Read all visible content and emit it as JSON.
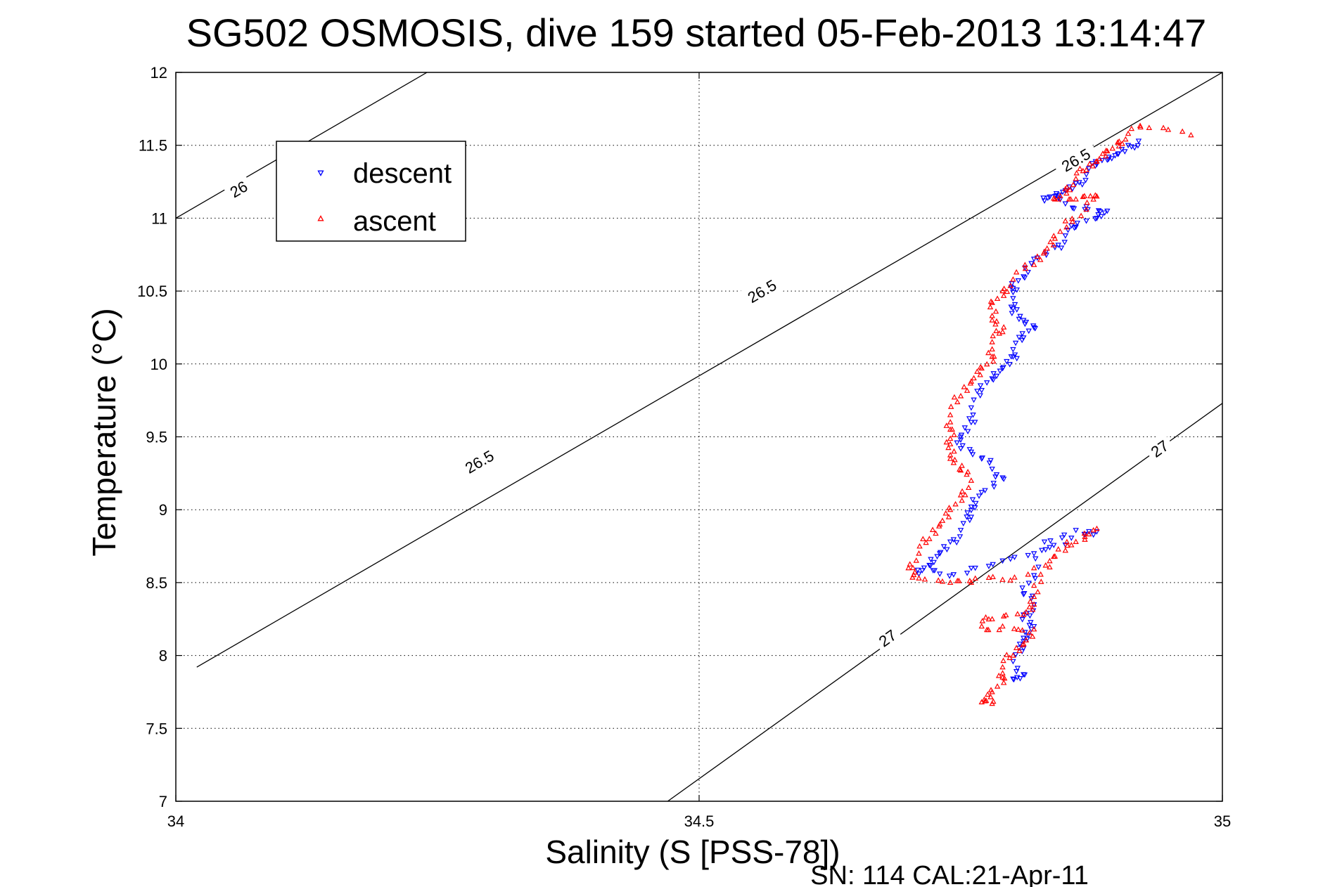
{
  "chart_data": {
    "type": "scatter",
    "title": "SG502 OSMOSIS, dive 159 started 05-Feb-2013 13:14:47",
    "xlabel": "Salinity (S [PSS-78])",
    "ylabel": "Temperature (°C)",
    "footer": "SN: 114  CAL:21-Apr-11",
    "xlim": [
      34,
      35
    ],
    "ylim": [
      7,
      12
    ],
    "xticks": [
      "34",
      "34.5",
      "35"
    ],
    "yticks": [
      "7",
      "7.5",
      "8",
      "8.5",
      "9",
      "9.5",
      "10",
      "10.5",
      "11",
      "11.5",
      "12"
    ],
    "grid": true,
    "legend_position": "upper-left",
    "series": [
      {
        "name": "descent",
        "color": "#0000ff",
        "marker": "triangle-down",
        "points": [
          [
            34.92,
            11.53
          ],
          [
            34.91,
            11.5
          ],
          [
            34.9,
            11.44
          ],
          [
            34.89,
            11.4
          ],
          [
            34.88,
            11.37
          ],
          [
            34.87,
            11.3
          ],
          [
            34.86,
            11.24
          ],
          [
            34.85,
            11.19
          ],
          [
            34.84,
            11.15
          ],
          [
            34.83,
            11.12
          ],
          [
            34.85,
            11.1
          ],
          [
            34.87,
            11.08
          ],
          [
            34.89,
            11.05
          ],
          [
            34.88,
            11.0
          ],
          [
            34.86,
            10.94
          ],
          [
            34.85,
            10.88
          ],
          [
            34.84,
            10.8
          ],
          [
            34.82,
            10.72
          ],
          [
            34.81,
            10.6
          ],
          [
            34.8,
            10.52
          ],
          [
            34.8,
            10.45
          ],
          [
            34.8,
            10.38
          ],
          [
            34.81,
            10.3
          ],
          [
            34.82,
            10.25
          ],
          [
            34.81,
            10.18
          ],
          [
            34.8,
            10.1
          ],
          [
            34.8,
            10.05
          ],
          [
            34.79,
            9.97
          ],
          [
            34.78,
            9.9
          ],
          [
            34.77,
            9.82
          ],
          [
            34.76,
            9.7
          ],
          [
            34.76,
            9.6
          ],
          [
            34.75,
            9.5
          ],
          [
            34.75,
            9.42
          ],
          [
            34.77,
            9.35
          ],
          [
            34.78,
            9.28
          ],
          [
            34.79,
            9.22
          ],
          [
            34.77,
            9.12
          ],
          [
            34.76,
            9.02
          ],
          [
            34.76,
            8.95
          ],
          [
            34.75,
            8.86
          ],
          [
            34.74,
            8.78
          ],
          [
            34.73,
            8.7
          ],
          [
            34.72,
            8.62
          ],
          [
            34.71,
            8.56
          ],
          [
            34.73,
            8.56
          ],
          [
            34.76,
            8.6
          ],
          [
            34.79,
            8.65
          ],
          [
            34.82,
            8.7
          ],
          [
            34.85,
            8.76
          ],
          [
            34.88,
            8.85
          ],
          [
            34.86,
            8.86
          ],
          [
            34.83,
            8.78
          ],
          [
            34.82,
            8.55
          ],
          [
            34.81,
            8.42
          ],
          [
            34.82,
            8.35
          ],
          [
            34.81,
            8.28
          ],
          [
            34.82,
            8.2
          ],
          [
            34.81,
            8.12
          ],
          [
            34.81,
            8.05
          ],
          [
            34.8,
            7.96
          ],
          [
            34.81,
            7.87
          ],
          [
            34.8,
            7.84
          ]
        ]
      },
      {
        "name": "ascent",
        "color": "#ff0000",
        "marker": "triangle-up",
        "points": [
          [
            34.97,
            11.57
          ],
          [
            34.93,
            11.62
          ],
          [
            34.91,
            11.58
          ],
          [
            34.9,
            11.52
          ],
          [
            34.89,
            11.46
          ],
          [
            34.88,
            11.39
          ],
          [
            34.87,
            11.33
          ],
          [
            34.86,
            11.27
          ],
          [
            34.85,
            11.2
          ],
          [
            34.84,
            11.13
          ],
          [
            34.86,
            11.13
          ],
          [
            34.88,
            11.15
          ],
          [
            34.87,
            11.06
          ],
          [
            34.85,
            10.98
          ],
          [
            34.84,
            10.86
          ],
          [
            34.83,
            10.77
          ],
          [
            34.82,
            10.68
          ],
          [
            34.8,
            10.58
          ],
          [
            34.79,
            10.5
          ],
          [
            34.78,
            10.42
          ],
          [
            34.78,
            10.3
          ],
          [
            34.79,
            10.22
          ],
          [
            34.78,
            10.15
          ],
          [
            34.78,
            10.05
          ],
          [
            34.77,
            9.97
          ],
          [
            34.76,
            9.88
          ],
          [
            34.75,
            9.78
          ],
          [
            34.74,
            9.65
          ],
          [
            34.74,
            9.55
          ],
          [
            34.74,
            9.45
          ],
          [
            34.74,
            9.35
          ],
          [
            34.75,
            9.27
          ],
          [
            34.76,
            9.2
          ],
          [
            34.75,
            9.1
          ],
          [
            34.74,
            9.0
          ],
          [
            34.73,
            8.9
          ],
          [
            34.72,
            8.8
          ],
          [
            34.71,
            8.7
          ],
          [
            34.7,
            8.6
          ],
          [
            34.71,
            8.53
          ],
          [
            34.74,
            8.5
          ],
          [
            34.76,
            8.5
          ],
          [
            34.79,
            8.52
          ],
          [
            34.82,
            8.6
          ],
          [
            34.85,
            8.72
          ],
          [
            34.88,
            8.87
          ],
          [
            34.86,
            8.78
          ],
          [
            34.84,
            8.68
          ],
          [
            34.82,
            8.48
          ],
          [
            34.82,
            8.35
          ],
          [
            34.81,
            8.28
          ],
          [
            34.78,
            8.25
          ],
          [
            34.77,
            8.2
          ],
          [
            34.79,
            8.2
          ],
          [
            34.82,
            8.18
          ],
          [
            34.81,
            8.08
          ],
          [
            34.8,
            8.0
          ],
          [
            34.79,
            7.92
          ],
          [
            34.79,
            7.85
          ],
          [
            34.78,
            7.75
          ],
          [
            34.77,
            7.68
          ],
          [
            34.78,
            7.67
          ]
        ]
      }
    ],
    "contours": [
      {
        "label": "26",
        "color": "#000000",
        "points": [
          [
            34.0,
            11.0
          ],
          [
            34.24,
            12.0
          ]
        ],
        "label_at": [
          34.06,
          11.2
        ]
      },
      {
        "label": "26.5",
        "color": "#000000",
        "points": [
          [
            34.02,
            7.92
          ],
          [
            35.0,
            12.0
          ]
        ],
        "label_at": [
          [
            34.29,
            9.33
          ],
          [
            34.56,
            10.5
          ],
          [
            34.86,
            11.4
          ]
        ]
      },
      {
        "label": "27",
        "color": "#000000",
        "points": [
          [
            34.47,
            7.0
          ],
          [
            35.0,
            9.73
          ]
        ],
        "label_at": [
          [
            34.68,
            8.12
          ],
          [
            34.94,
            9.42
          ]
        ]
      }
    ]
  }
}
